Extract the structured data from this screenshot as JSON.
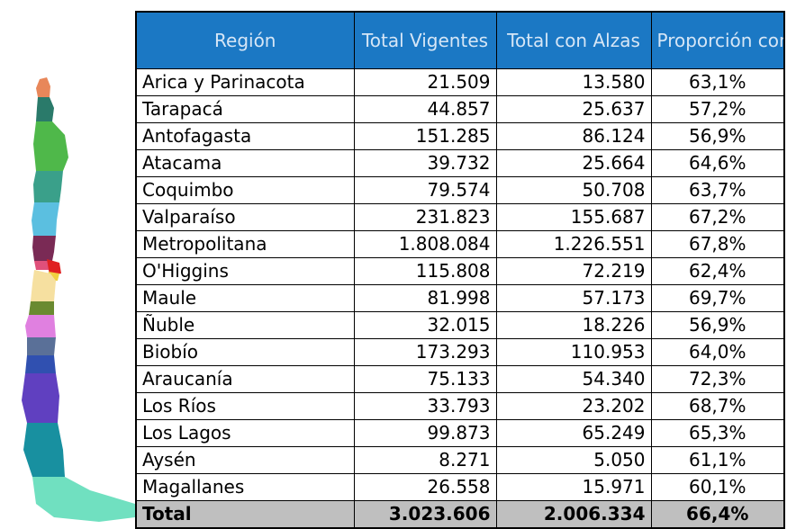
{
  "table": {
    "columns": [
      "Región",
      "Total Vigentes",
      "Total con Alzas",
      "Proporción con Alzas"
    ],
    "rows": [
      [
        "Arica y Parinacota",
        "21.509",
        "13.580",
        "63,1%"
      ],
      [
        "Tarapacá",
        "44.857",
        "25.637",
        "57,2%"
      ],
      [
        "Antofagasta",
        "151.285",
        "86.124",
        "56,9%"
      ],
      [
        "Atacama",
        "39.732",
        "25.664",
        "64,6%"
      ],
      [
        "Coquimbo",
        "79.574",
        "50.708",
        "63,7%"
      ],
      [
        "Valparaíso",
        "231.823",
        "155.687",
        "67,2%"
      ],
      [
        "Metropolitana",
        "1.808.084",
        "1.226.551",
        "67,8%"
      ],
      [
        "O'Higgins",
        "115.808",
        "72.219",
        "62,4%"
      ],
      [
        "Maule",
        "81.998",
        "57.173",
        "69,7%"
      ],
      [
        "Ñuble",
        "32.015",
        "18.226",
        "56,9%"
      ],
      [
        "Biobío",
        "173.293",
        "110.953",
        "64,0%"
      ],
      [
        "Araucanía",
        "75.133",
        "54.340",
        "72,3%"
      ],
      [
        "Los Ríos",
        "33.793",
        "23.202",
        "68,7%"
      ],
      [
        "Los Lagos",
        "99.873",
        "65.249",
        "65,3%"
      ],
      [
        "Aysén",
        "8.271",
        "5.050",
        "61,1%"
      ],
      [
        "Magallanes",
        "26.558",
        "15.971",
        "60,1%"
      ]
    ],
    "total": [
      "Total",
      "3.023.606",
      "2.006.334",
      "66,4%"
    ]
  }
}
